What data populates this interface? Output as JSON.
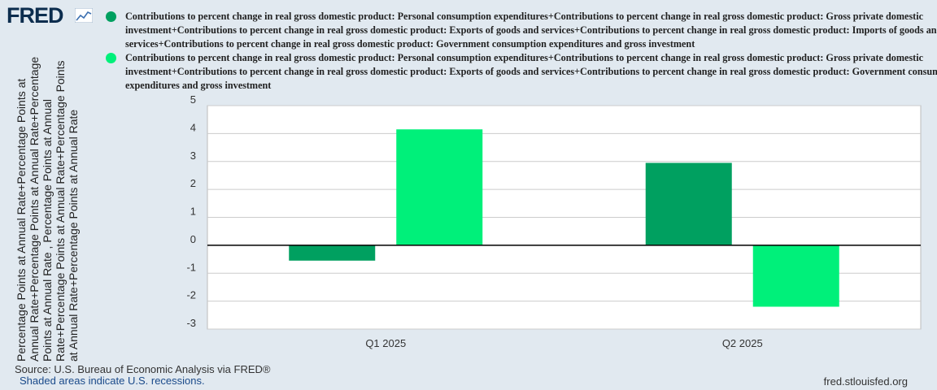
{
  "logo": {
    "text": "FRED",
    "icon": "trend-line-icon"
  },
  "colors": {
    "series1": "#00a060",
    "series2": "#00f07a",
    "axis": "#000000",
    "grid": "#cccccc",
    "page": "#e1e9f0",
    "plot": "#ffffff"
  },
  "legend": [
    {
      "label": "Contributions to percent change in real gross domestic product: Personal consumption expenditures+Contributions to percent change in real gross domestic product: Gross private domestic investment+Contributions to percent change in real gross domestic product: Exports of goods and services+Contributions to percent change in real gross domestic product: Imports of goods and services+Contributions to percent change in real gross domestic product: Government consumption expenditures and gross investment"
    },
    {
      "label": "Contributions to percent change in real gross domestic product: Personal consumption expenditures+Contributions to percent change in real gross domestic product: Gross private domestic investment+Contributions to percent change in real gross domestic product: Exports of goods and services+Contributions to percent change in real gross domestic product: Government consumption expenditures and gross investment"
    }
  ],
  "ylabel": "Percentage Points at Annual Rate+Percentage Points at Annual Rate+Percentage Points at Annual Rate+Percentage Points at Annual Rate , Percentage Points at Annual Rate+Percentage Points at Annual Rate+Percentage Points at Annual Rate+Percentage Points at Annual Rate",
  "chart_data": {
    "type": "bar",
    "categories": [
      "Q1 2025",
      "Q2 2025"
    ],
    "series": [
      {
        "values": [
          -0.55,
          2.95
        ]
      },
      {
        "values": [
          4.15,
          -2.2
        ]
      }
    ],
    "ylim": [
      -3,
      5
    ],
    "yticks": [
      -3,
      -2,
      -1,
      0,
      1,
      2,
      3,
      4,
      5
    ],
    "ytick_labels": [
      "-3",
      "-2",
      "-1",
      "0",
      "1",
      "2",
      "3",
      "4",
      "5"
    ],
    "grid": true
  },
  "footer": {
    "source": "Source: U.S. Bureau of Economic Analysis via FRED®",
    "shaded": "Shaded areas indicate U.S. recessions.",
    "url": "fred.stlouisfed.org"
  }
}
